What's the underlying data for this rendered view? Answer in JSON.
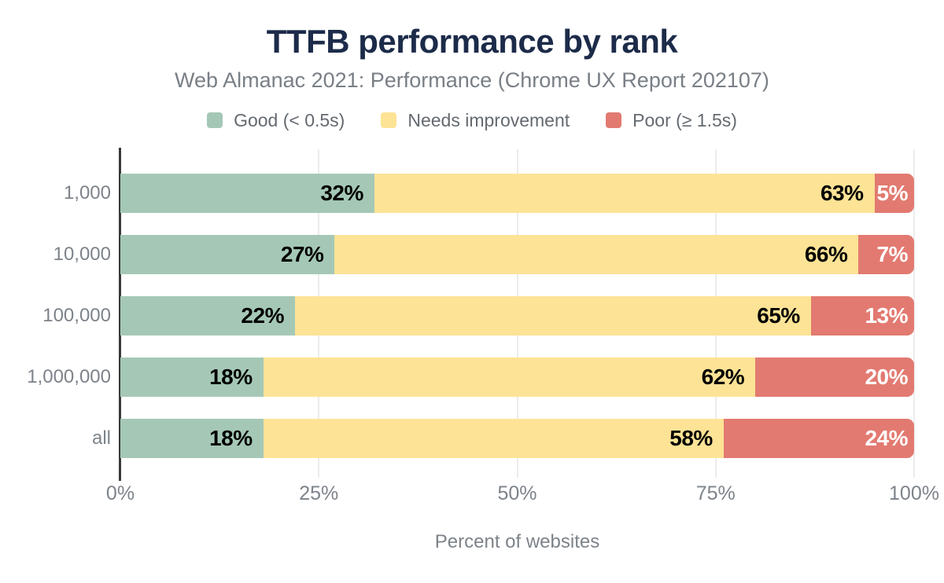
{
  "header": {
    "title": "TTFB performance by rank",
    "subtitle": "Web Almanac 2021: Performance (Chrome UX Report 202107)"
  },
  "legend": [
    {
      "label": "Good (< 0.5s)",
      "color": "#a5c8b6"
    },
    {
      "label": "Needs improvement",
      "color": "#fde395"
    },
    {
      "label": "Poor (≥ 1.5s)",
      "color": "#e27a71"
    }
  ],
  "chart_data": {
    "type": "bar",
    "orientation": "horizontal",
    "stacked": true,
    "title": "TTFB performance by rank",
    "subtitle": "Web Almanac 2021: Performance (Chrome UX Report 202107)",
    "categories": [
      "1,000",
      "10,000",
      "100,000",
      "1,000,000",
      "all"
    ],
    "series": [
      {
        "name": "Good (< 0.5s)",
        "color": "#a5c8b6",
        "label_color": "#000000",
        "values": [
          32,
          27,
          22,
          18,
          18
        ]
      },
      {
        "name": "Needs improvement",
        "color": "#fde395",
        "label_color": "#000000",
        "values": [
          63,
          66,
          65,
          62,
          58
        ]
      },
      {
        "name": "Poor (≥ 1.5s)",
        "color": "#e27a71",
        "label_color": "#ffffff",
        "values": [
          5,
          7,
          13,
          20,
          24
        ]
      }
    ],
    "xlabel": "Percent of websites",
    "ylabel": "",
    "xlim": [
      0,
      100
    ],
    "x_ticks": [
      "0%",
      "25%",
      "50%",
      "75%",
      "100%"
    ],
    "x_tick_values": [
      0,
      25,
      50,
      75,
      100
    ],
    "value_suffix": "%",
    "grid": true,
    "legend_position": "top"
  },
  "colors": {
    "title": "#1c2b49",
    "subtitle": "#797f86",
    "axis_text": "#7d838a",
    "axis_line": "#37393b",
    "gridline": "#ececec",
    "background": "#ffffff"
  }
}
